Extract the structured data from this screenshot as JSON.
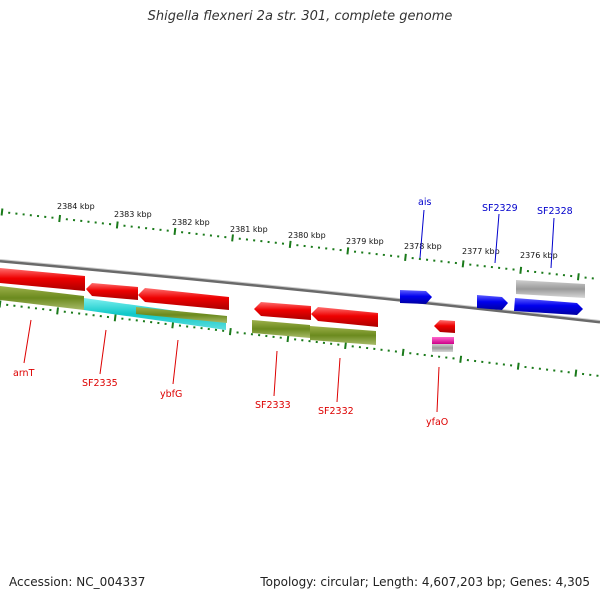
{
  "title": "Shigella flexneri 2a str. 301, complete genome",
  "footer": {
    "accession": "Accession: NC_004337",
    "summary": "Topology: circular; Length: 4,607,203 bp; Genes: 4,305"
  },
  "scale_labels": [
    "2384 kbp",
    "2383 kbp",
    "2382 kbp",
    "2381 kbp",
    "2380 kbp",
    "2379 kbp",
    "2378 kbp",
    "2377 kbp",
    "2376 kbp"
  ],
  "gene_labels_top": [
    "ais",
    "SF2329",
    "SF2328"
  ],
  "gene_labels_bottom": [
    "arnT",
    "SF2335",
    "ybfG",
    "SF2333",
    "SF2332",
    "yfaO"
  ],
  "colors": {
    "forward_strand": "#0000ee",
    "reverse_strand": "#dd0000",
    "ruler_ticks": "#1a7a1a",
    "backbone": "#808080"
  }
}
